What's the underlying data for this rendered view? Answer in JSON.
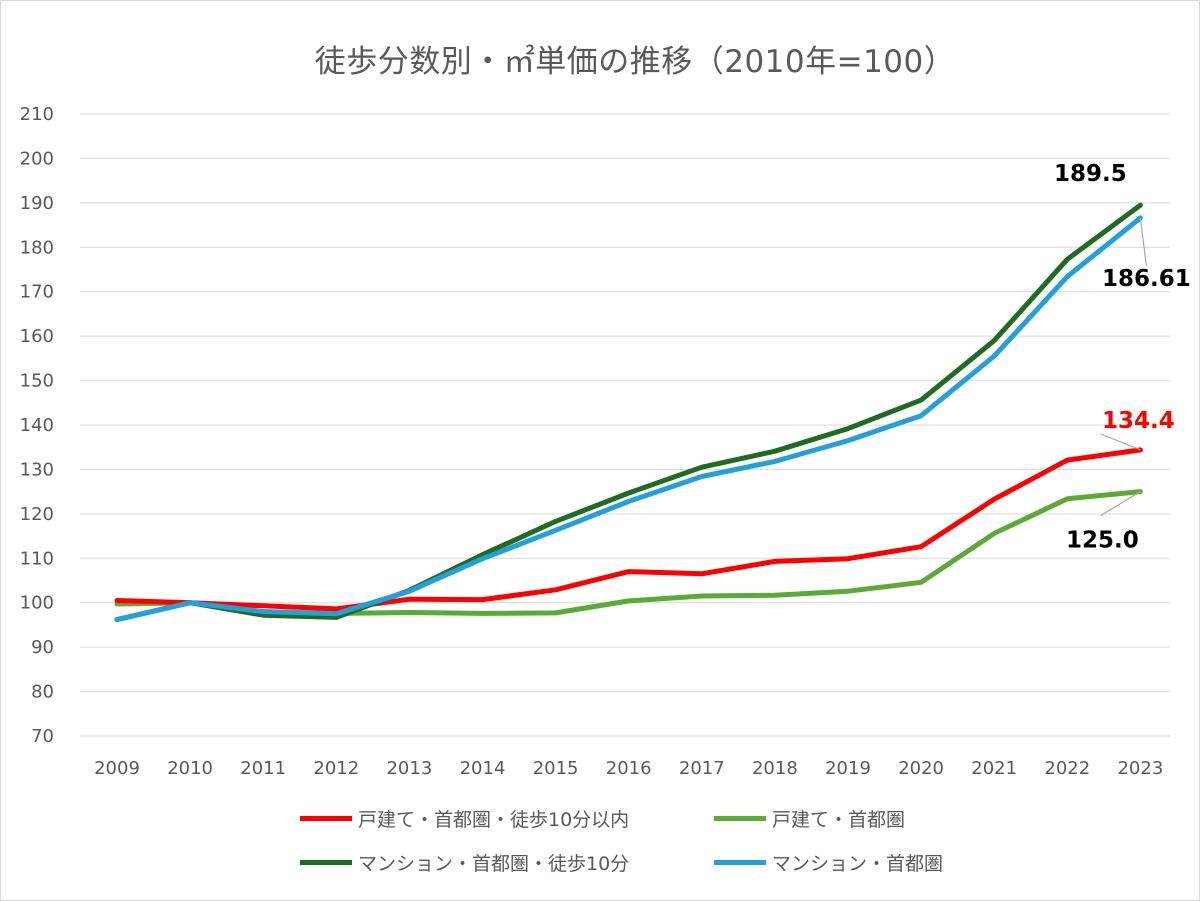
{
  "chart_data": {
    "type": "line",
    "title": "徒歩分数別・㎡単価の推移（2010年=100）",
    "xlabel": "",
    "ylabel": "",
    "ylim": [
      70,
      210
    ],
    "yticks": [
      70,
      80,
      90,
      100,
      110,
      120,
      130,
      140,
      150,
      160,
      170,
      180,
      190,
      200,
      210
    ],
    "grid": true,
    "legend_position": "bottom",
    "categories": [
      "2009",
      "2010",
      "2011",
      "2012",
      "2013",
      "2014",
      "2015",
      "2016",
      "2017",
      "2018",
      "2019",
      "2020",
      "2021",
      "2022",
      "2023"
    ],
    "series": [
      {
        "name": "戸建て・首都圏・徒歩10分以内",
        "color": "#ff0000",
        "values": [
          100.5,
          100.0,
          99.3,
          98.6,
          100.8,
          100.7,
          102.9,
          107.0,
          106.5,
          109.3,
          109.9,
          112.6,
          123.3,
          132.1,
          134.4
        ],
        "end_label": "134.4",
        "end_label_color": "#ff0000"
      },
      {
        "name": "戸建て・首都圏",
        "color": "#5aab33",
        "values": [
          99.7,
          100.0,
          98.0,
          97.6,
          97.8,
          97.6,
          97.7,
          100.4,
          101.5,
          101.7,
          102.6,
          104.6,
          115.6,
          123.4,
          125.0
        ],
        "end_label": "125.0",
        "end_label_color": "#000000"
      },
      {
        "name": "マンション・首都圏・徒歩10分",
        "color": "#1e6b22",
        "values": [
          96.2,
          100.0,
          97.2,
          96.7,
          102.8,
          110.8,
          118.3,
          124.7,
          130.5,
          134.1,
          139.2,
          145.6,
          159.0,
          177.3,
          189.5
        ],
        "end_label": "189.5",
        "end_label_color": "#000000"
      },
      {
        "name": "マンション・首都圏",
        "color": "#22a0dc",
        "values": [
          96.2,
          100.0,
          98.0,
          97.5,
          102.6,
          109.9,
          116.3,
          122.8,
          128.4,
          131.8,
          136.5,
          142.1,
          155.5,
          173.4,
          186.61
        ],
        "end_label": "186.61",
        "end_label_color": "#000000"
      }
    ]
  }
}
